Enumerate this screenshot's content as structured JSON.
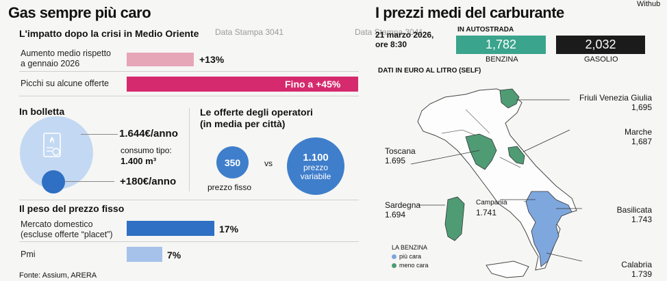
{
  "left": {
    "title": "Gas sempre più caro",
    "subtitle": "L'impatto dopo la crisi in Medio Oriente",
    "watermark1": "Data Stampa 3041",
    "rows": [
      {
        "label": "Aumento medio rispetto\na gennaio 2026",
        "value": "+13%"
      },
      {
        "label": "Picchi su alcune offerte",
        "value": "Fino a +45%"
      }
    ],
    "bolletta": {
      "title": "In bolletta",
      "annual": "1.644€/anno",
      "consumo_label": "consumo tipo:",
      "consumo_value": "1.400 m³",
      "increase": "+180€/anno"
    },
    "offerte": {
      "title": "Le offerte degli operatori\n(in media per città)",
      "fixed_value": "350",
      "fixed_label": "prezzo fisso",
      "vs": "vs",
      "variable_value": "1.100",
      "variable_label": "prezzo\nvariabile"
    },
    "peso": {
      "title": "Il peso del prezzo fisso",
      "rows": [
        {
          "label": "Mercato domestico\n(escluse offerte “placet”)",
          "value": "17%"
        },
        {
          "label": "Pmi",
          "value": "7%"
        }
      ]
    },
    "source": "Fonte: Assium, ARERA"
  },
  "right": {
    "title": "I prezzi medi del carburante",
    "corner": "Withub",
    "watermark2": "Data Stampa 3041",
    "date": "21 marzo 2026,\nore 8:30",
    "autostrada_label": "IN AUTOSTRADA",
    "benzina_value": "1,782",
    "benzina_label": "BENZINA",
    "gasolio_value": "2,032",
    "gasolio_label": "GASOLIO",
    "unit_note": "DATI IN EURO AL LITRO (SELF)",
    "regions": [
      {
        "name": "Friuli Venezia Giulia",
        "value": "1,695"
      },
      {
        "name": "Marche",
        "value": "1,687"
      },
      {
        "name": "Toscana",
        "value": "1.695"
      },
      {
        "name": "Sardegna",
        "value": "1.694"
      },
      {
        "name": "Campania",
        "value": "1.741"
      },
      {
        "name": "Basilicata",
        "value": "1.743"
      },
      {
        "name": "Calabria",
        "value": "1.739"
      }
    ],
    "legend": {
      "title": "LA BENZINA",
      "items": [
        "più cara",
        "meno cara"
      ]
    }
  },
  "colors": {
    "pink_light": "#e7a6b7",
    "pink_strong": "#d52a6d",
    "blue_dark": "#2f6fc4",
    "blue_light": "#a6c2ea",
    "blue_mid": "#3f7ecb",
    "circle_light": "#c3d8f2",
    "teal": "#3aa48c",
    "black_box": "#1b1b1b",
    "region_green": "#4f9b74",
    "region_blue": "#7ea7de"
  }
}
